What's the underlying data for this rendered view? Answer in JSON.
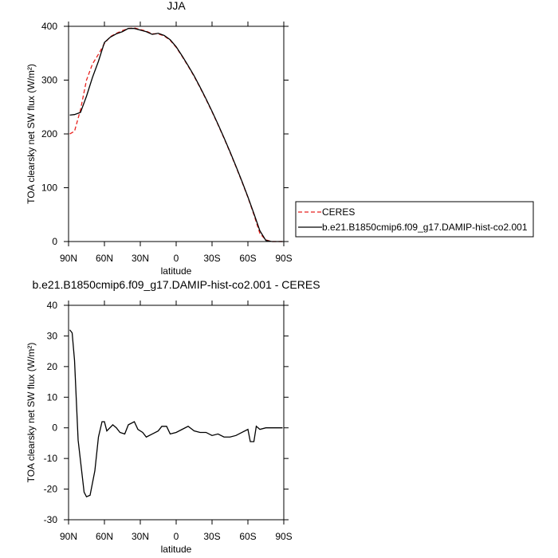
{
  "chart_data": [
    {
      "type": "line",
      "title": "JJA",
      "xlabel": "latitude",
      "ylabel": "TOA clearsky net SW flux (W/m²)",
      "xlim": [
        90,
        -90
      ],
      "xticks": [
        {
          "value": 90,
          "label": "90N"
        },
        {
          "value": 60,
          "label": "60N"
        },
        {
          "value": 30,
          "label": "30N"
        },
        0,
        {
          "value": -30,
          "label": "30S"
        },
        {
          "value": -60,
          "label": "60S"
        },
        {
          "value": -90,
          "label": "90S"
        }
      ],
      "ylim": [
        0,
        400
      ],
      "yticks": [
        0,
        100,
        200,
        300,
        400
      ],
      "legend": "right",
      "x": [
        89,
        85,
        80,
        75,
        70,
        65,
        60,
        55,
        50,
        45,
        40,
        35,
        30,
        25,
        20,
        15,
        10,
        5,
        0,
        -5,
        -10,
        -15,
        -20,
        -25,
        -30,
        -35,
        -40,
        -45,
        -50,
        -55,
        -60,
        -65,
        -70,
        -75,
        -80,
        -85,
        -89
      ],
      "series": [
        {
          "name": "CERES",
          "color": "#e8221e",
          "dashed": true,
          "values": [
            200,
            205,
            245,
            300,
            330,
            348,
            368,
            381,
            387,
            392,
            396,
            397,
            394,
            391,
            386,
            386,
            382,
            374,
            361,
            344,
            326,
            307,
            286,
            264,
            241,
            217,
            192,
            166,
            139,
            111,
            82,
            50,
            15,
            3,
            0,
            0,
            0
          ]
        },
        {
          "name": "b.e21.B1850cmip6.f09_g17.DAMIP-hist-co2.001",
          "color": "#000000",
          "dashed": false,
          "values": [
            235,
            236,
            240,
            270,
            305,
            335,
            370,
            380,
            386,
            390,
            396,
            396,
            393,
            390,
            385,
            387,
            383,
            375,
            362,
            345,
            327,
            308,
            287,
            265,
            242,
            218,
            193,
            167,
            140,
            112,
            83,
            52,
            20,
            2,
            0,
            0,
            0
          ]
        }
      ]
    },
    {
      "type": "line",
      "title": "b.e21.B1850cmip6.f09_g17.DAMIP-hist-co2.001 - CERES",
      "xlabel": "latitude",
      "ylabel": "TOA clearsky net SW flux (W/m²)",
      "xlim": [
        90,
        -90
      ],
      "xticks": [
        {
          "value": 90,
          "label": "90N"
        },
        {
          "value": 60,
          "label": "60N"
        },
        {
          "value": 30,
          "label": "30N"
        },
        0,
        {
          "value": -30,
          "label": "30S"
        },
        {
          "value": -60,
          "label": "60S"
        },
        {
          "value": -90,
          "label": "90S"
        }
      ],
      "ylim": [
        -30,
        40
      ],
      "yticks": [
        -30,
        -20,
        -10,
        0,
        10,
        20,
        30,
        40
      ],
      "x": [
        89,
        87,
        85,
        82,
        77,
        75,
        72,
        68,
        65,
        62,
        60,
        58,
        53,
        50,
        47,
        43,
        40,
        35,
        32,
        28,
        25,
        20,
        15,
        12,
        8,
        5,
        0,
        -5,
        -10,
        -15,
        -20,
        -25,
        -30,
        -35,
        -40,
        -45,
        -50,
        -55,
        -60,
        -62,
        -65,
        -67,
        -70,
        -75,
        -80,
        -85,
        -89
      ],
      "series": [
        {
          "color": "#000000",
          "dashed": false,
          "values": [
            32,
            31,
            22,
            -4,
            -21,
            -22.5,
            -22,
            -14,
            -3,
            2,
            2,
            -1,
            1,
            0,
            -1.5,
            -2,
            1,
            2,
            -0.5,
            -1.5,
            -3,
            -2,
            -1,
            0.5,
            0.5,
            -2,
            -1.5,
            -0.5,
            0.5,
            -1,
            -1.5,
            -1.5,
            -2.5,
            -2,
            -3,
            -3,
            -2.5,
            -1.5,
            -0.5,
            -4.5,
            -4.5,
            0.5,
            -0.5,
            0,
            0,
            0,
            0
          ]
        }
      ]
    }
  ]
}
